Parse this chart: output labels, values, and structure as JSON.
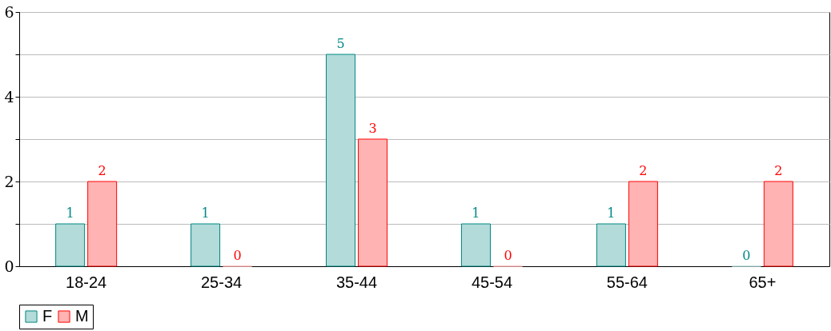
{
  "chart_data": {
    "type": "bar",
    "categories": [
      "18-24",
      "25-34",
      "35-44",
      "45-54",
      "55-64",
      "65+"
    ],
    "series": [
      {
        "name": "F",
        "color": "#b2dbd9",
        "values": [
          1,
          1,
          5,
          1,
          1,
          0
        ]
      },
      {
        "name": "M",
        "color": "#ffb3b3",
        "values": [
          2,
          0,
          3,
          0,
          2,
          2
        ]
      }
    ],
    "ylim": [
      0,
      6
    ],
    "yticks": [
      0,
      {
        "value": 1,
        "label": null
      },
      2,
      {
        "value": 3,
        "label": null
      },
      4,
      {
        "value": 5,
        "label": null
      },
      6
    ],
    "grid": "y",
    "legend": "bottom",
    "data_labels": true
  }
}
